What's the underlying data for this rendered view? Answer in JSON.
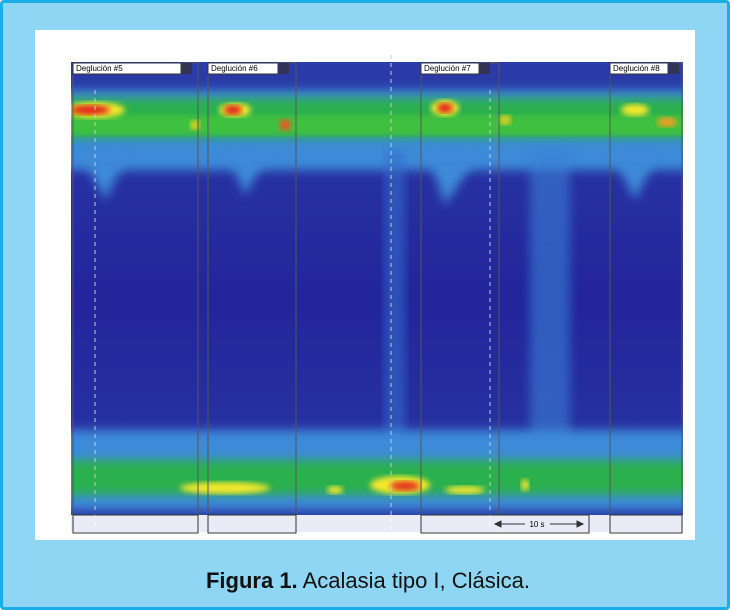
{
  "figure": {
    "swallow_labels": [
      "Deglución #5",
      "Deglución #6",
      "Deglución #7",
      "Deglución #8"
    ],
    "time_scale": "10 s",
    "caption": {
      "label": "Figura 1.",
      "text": "Acalasia tipo I, Clásica."
    }
  }
}
